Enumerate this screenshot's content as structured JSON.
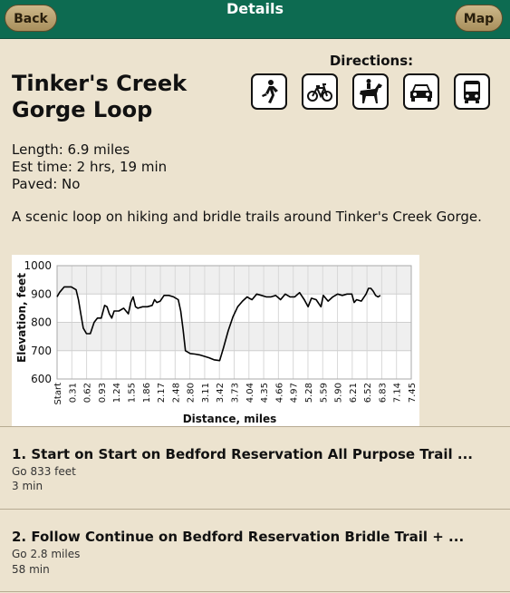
{
  "nav": {
    "back_label": "Back",
    "title": "Details",
    "map_label": "Map"
  },
  "trail": {
    "name": "Tinker's Creek Gorge Loop",
    "length": "Length: 6.9 miles",
    "time": "Est time: 2 hrs, 19 min",
    "paved": "Paved: No",
    "description": "A scenic loop on hiking and bridle trails around Tinker's Creek Gorge."
  },
  "directions": {
    "label": "Directions:",
    "modes": [
      "walk-icon",
      "bike-icon",
      "horse-icon",
      "car-icon",
      "bus-icon"
    ]
  },
  "chart_data": {
    "type": "line",
    "xlabel": "Distance, miles",
    "ylabel": "Elevation, feet",
    "ylim": [
      600,
      1000
    ],
    "yticks": [
      "1000",
      "900",
      "800",
      "700",
      "600"
    ],
    "xticks": [
      "Start",
      "0.31",
      "0.62",
      "0.93",
      "1.24",
      "1.55",
      "1.86",
      "2.17",
      "2.48",
      "2.80",
      "3.11",
      "3.42",
      "3.73",
      "4.04",
      "4.35",
      "4.66",
      "4.97",
      "5.28",
      "5.59",
      "5.90",
      "6.21",
      "6.52",
      "6.83",
      "7.14",
      "7.45"
    ],
    "xlim": [
      0,
      7.45
    ],
    "series": [
      {
        "x": [
          0,
          0.05,
          0.15,
          0.3,
          0.4,
          0.45,
          0.5,
          0.55,
          0.62,
          0.7,
          0.78,
          0.85,
          0.93,
          1.0,
          1.05,
          1.1,
          1.15,
          1.2,
          1.3,
          1.4,
          1.5,
          1.55,
          1.6,
          1.65,
          1.7,
          1.8,
          1.9,
          2.0,
          2.05,
          2.1,
          2.17,
          2.25,
          2.35,
          2.45,
          2.55,
          2.6,
          2.65,
          2.7,
          2.75,
          2.8,
          2.9,
          3.0,
          3.1,
          3.2,
          3.3,
          3.42,
          3.5,
          3.6,
          3.7,
          3.8,
          3.9,
          4.0,
          4.04,
          4.1,
          4.2,
          4.3,
          4.4,
          4.5,
          4.6,
          4.7,
          4.8,
          4.9,
          5.0,
          5.1,
          5.2,
          5.28,
          5.35,
          5.45,
          5.55,
          5.6,
          5.7,
          5.8,
          5.9,
          6.0,
          6.1,
          6.2,
          6.25,
          6.3,
          6.4,
          6.5,
          6.55,
          6.6,
          6.65,
          6.7,
          6.75,
          6.8
        ],
        "y": [
          890,
          905,
          925,
          925,
          915,
          880,
          830,
          780,
          760,
          760,
          800,
          815,
          815,
          860,
          855,
          830,
          815,
          840,
          840,
          850,
          830,
          870,
          890,
          855,
          850,
          855,
          855,
          860,
          880,
          870,
          875,
          895,
          895,
          890,
          880,
          840,
          775,
          700,
          695,
          690,
          688,
          685,
          680,
          675,
          668,
          665,
          710,
          770,
          820,
          855,
          875,
          890,
          885,
          880,
          900,
          895,
          890,
          890,
          895,
          880,
          900,
          890,
          890,
          905,
          880,
          855,
          885,
          880,
          855,
          895,
          875,
          890,
          900,
          895,
          900,
          900,
          870,
          880,
          875,
          900,
          920,
          920,
          910,
          895,
          890,
          895
        ]
      }
    ]
  },
  "steps": [
    {
      "title": "1. Start on Start on Bedford Reservation All Purpose Trail ...",
      "distance": "Go 833 feet",
      "time": "3 min"
    },
    {
      "title": "2. Follow Continue on Bedford Reservation Bridle Trail + ...",
      "distance": "Go 2.8 miles",
      "time": "58 min"
    }
  ]
}
